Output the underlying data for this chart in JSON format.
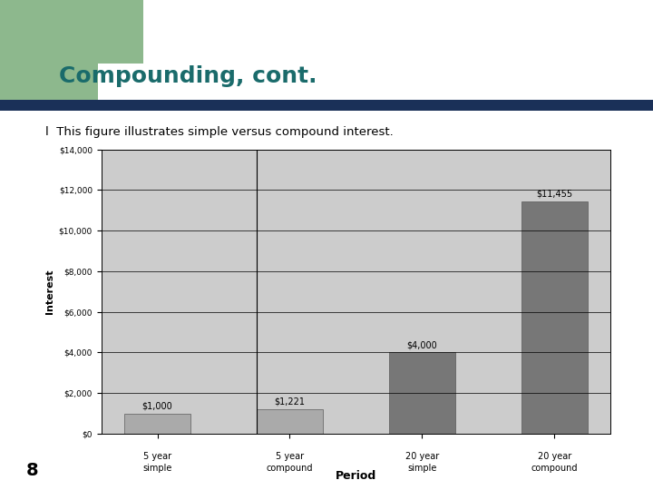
{
  "title": "Compounding, cont.",
  "bullet_text": "This figure illustrates simple versus compound interest.",
  "slide_bg": "#ffffff",
  "green_accent_color": "#8db88d",
  "title_color": "#1a6b6b",
  "bar_line_color": "#1a3058",
  "categories_line1": [
    "5 year",
    "5 year",
    "20 year",
    "20 year"
  ],
  "categories_line2": [
    "simple",
    "compound",
    "simple",
    "compound"
  ],
  "values": [
    1000,
    1221,
    4000,
    11455
  ],
  "bar_labels": [
    "$1,000",
    "$1,221",
    "$4,000",
    "$11,455"
  ],
  "bar_color_light": "#aaaaaa",
  "bar_color_dark": "#777777",
  "chart_bg": "#cccccc",
  "xlabel": "Period",
  "ylabel": "Interest",
  "yticks": [
    0,
    2000,
    4000,
    6000,
    8000,
    10000,
    12000,
    14000
  ],
  "ytick_labels": [
    "$0",
    "$2,000",
    "$4,000",
    "$6,000",
    "$8,000",
    "$10,000",
    "$12,000",
    "$14,000"
  ],
  "ylim": [
    0,
    14000
  ],
  "slide_number": "8",
  "grid_color": "#000000",
  "bullet_marker": "l"
}
